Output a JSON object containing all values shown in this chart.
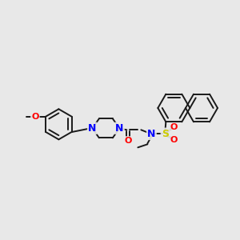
{
  "bg_color": "#e8e8e8",
  "bond_color": "#1a1a1a",
  "bond_width": 1.4,
  "figsize": [
    3.0,
    3.0
  ],
  "dpi": 100,
  "xlim": [
    0,
    300
  ],
  "ylim": [
    0,
    300
  ]
}
